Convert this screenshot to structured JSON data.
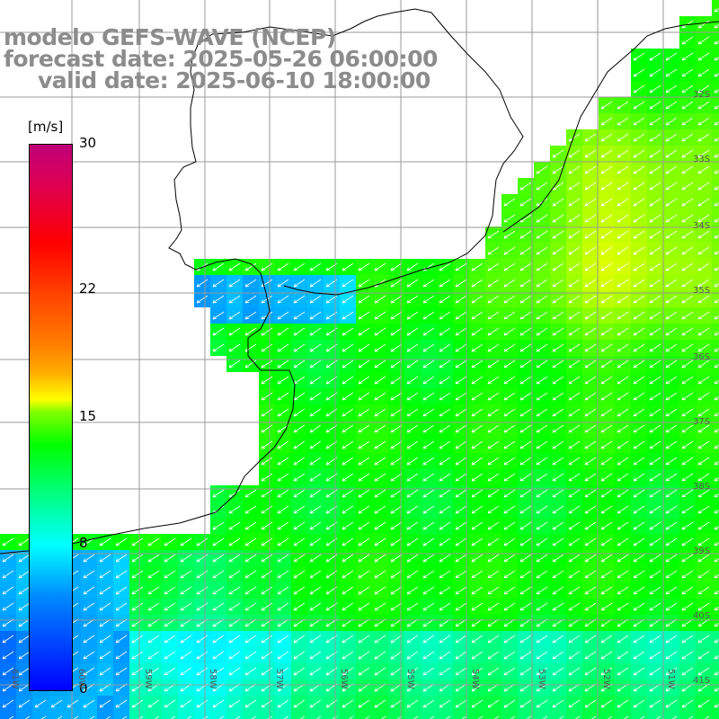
{
  "title": {
    "model": "modelo GEFS-WAVE (NCEP)",
    "forecast": "forecast date: 2025-05-26 06:00:00",
    "valid": "valid date: 2025-06-10 18:00:00"
  },
  "colorbar": {
    "units": "[m/s]",
    "ticks": [
      "30",
      "22",
      "15",
      "8",
      "0"
    ],
    "tick_values": [
      30,
      22,
      15,
      8,
      0
    ],
    "range": [
      0,
      30
    ]
  },
  "lat_labels": [
    "32S",
    "33S",
    "34S",
    "35S",
    "36S",
    "37S",
    "38S",
    "39S",
    "40S",
    "41S"
  ],
  "lon_labels": [
    "61W",
    "60W",
    "59W",
    "58W",
    "57W",
    "56W",
    "55W",
    "54W",
    "53W",
    "52W",
    "51W"
  ],
  "colors": {
    "land": "#ffffff",
    "grid": "#999999",
    "coast": "#000000",
    "title": "#8c8c8c",
    "arrows": "#ffffff"
  },
  "icons": {
    "wind_arrow": "wind-direction-arrow-icon"
  }
}
